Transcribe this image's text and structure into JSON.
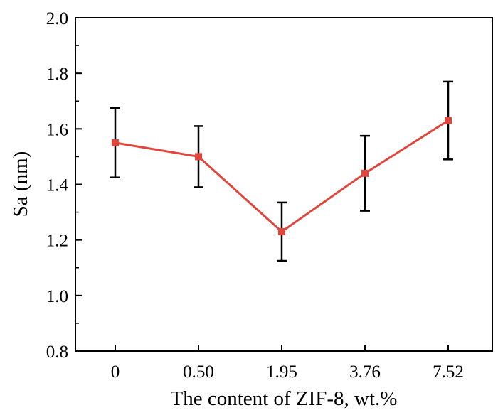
{
  "chart_data": {
    "type": "line",
    "title": "",
    "xlabel": "The content of ZIF-8, wt.%",
    "ylabel": "Sa (nm)",
    "categories": [
      "0",
      "0.50",
      "1.95",
      "3.76",
      "7.52"
    ],
    "series": [
      {
        "values": [
          1.55,
          1.5,
          1.23,
          1.44,
          1.63
        ],
        "error_upper": [
          1.675,
          1.61,
          1.335,
          1.575,
          1.77
        ],
        "error_lower": [
          1.425,
          1.39,
          1.125,
          1.305,
          1.49
        ],
        "color": "#e0463c",
        "marker": "square"
      }
    ],
    "ylim": [
      0.8,
      2.0
    ],
    "yticks": [
      "0.8",
      "1.0",
      "1.2",
      "1.4",
      "1.6",
      "1.8",
      "2.0"
    ],
    "grid": false,
    "legend": "none",
    "errorbar_color": "#000000"
  }
}
